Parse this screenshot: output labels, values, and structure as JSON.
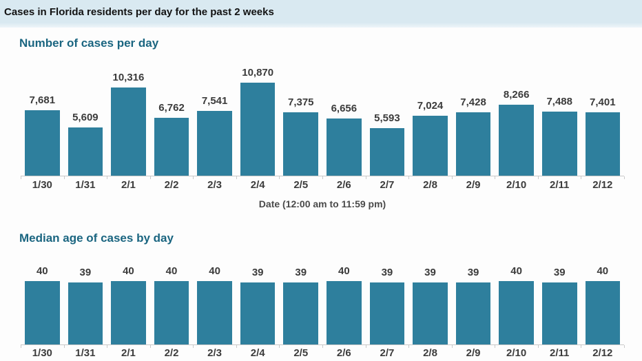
{
  "page": {
    "title": "Cases in Florida residents per day for the past 2 weeks"
  },
  "colors": {
    "bar": "#2e7f9d",
    "header_bg": "#d9e9f1",
    "heading": "#1a6580",
    "title_text": "#121212",
    "value_label": "#3b3b3b",
    "tick_label": "#3c3c3c",
    "axis_line": "#c9c9c9",
    "axis_title": "#4a4a4a"
  },
  "chart_data": [
    {
      "type": "bar",
      "title": "Number of cases per day",
      "categories": [
        "1/30",
        "1/31",
        "2/1",
        "2/2",
        "2/3",
        "2/4",
        "2/5",
        "2/6",
        "2/7",
        "2/8",
        "2/9",
        "2/10",
        "2/11",
        "2/12"
      ],
      "values": [
        7681,
        5609,
        10316,
        6762,
        7541,
        10870,
        7375,
        6656,
        5593,
        7024,
        7428,
        8266,
        7488,
        7401
      ],
      "value_labels": [
        "7,681",
        "5,609",
        "10,316",
        "6,762",
        "7,541",
        "10,870",
        "7,375",
        "6,656",
        "5,593",
        "7,024",
        "7,428",
        "8,266",
        "7,488",
        "7,401"
      ],
      "xlabel": "Date (12:00 am to 11:59 pm)",
      "ylabel": "",
      "ylim": [
        0,
        10870
      ],
      "grid": false,
      "data_labels": true,
      "legend": false
    },
    {
      "type": "bar",
      "title": "Median age of cases by day",
      "categories": [
        "1/30",
        "1/31",
        "2/1",
        "2/2",
        "2/3",
        "2/4",
        "2/5",
        "2/6",
        "2/7",
        "2/8",
        "2/9",
        "2/10",
        "2/11",
        "2/12"
      ],
      "values": [
        40,
        39,
        40,
        40,
        40,
        39,
        39,
        40,
        39,
        39,
        39,
        40,
        39,
        40
      ],
      "value_labels": [
        "40",
        "39",
        "40",
        "40",
        "40",
        "39",
        "39",
        "40",
        "39",
        "39",
        "39",
        "40",
        "39",
        "40"
      ],
      "xlabel": "",
      "ylabel": "",
      "ylim": [
        0,
        40
      ],
      "grid": false,
      "data_labels": true,
      "legend": false
    }
  ]
}
